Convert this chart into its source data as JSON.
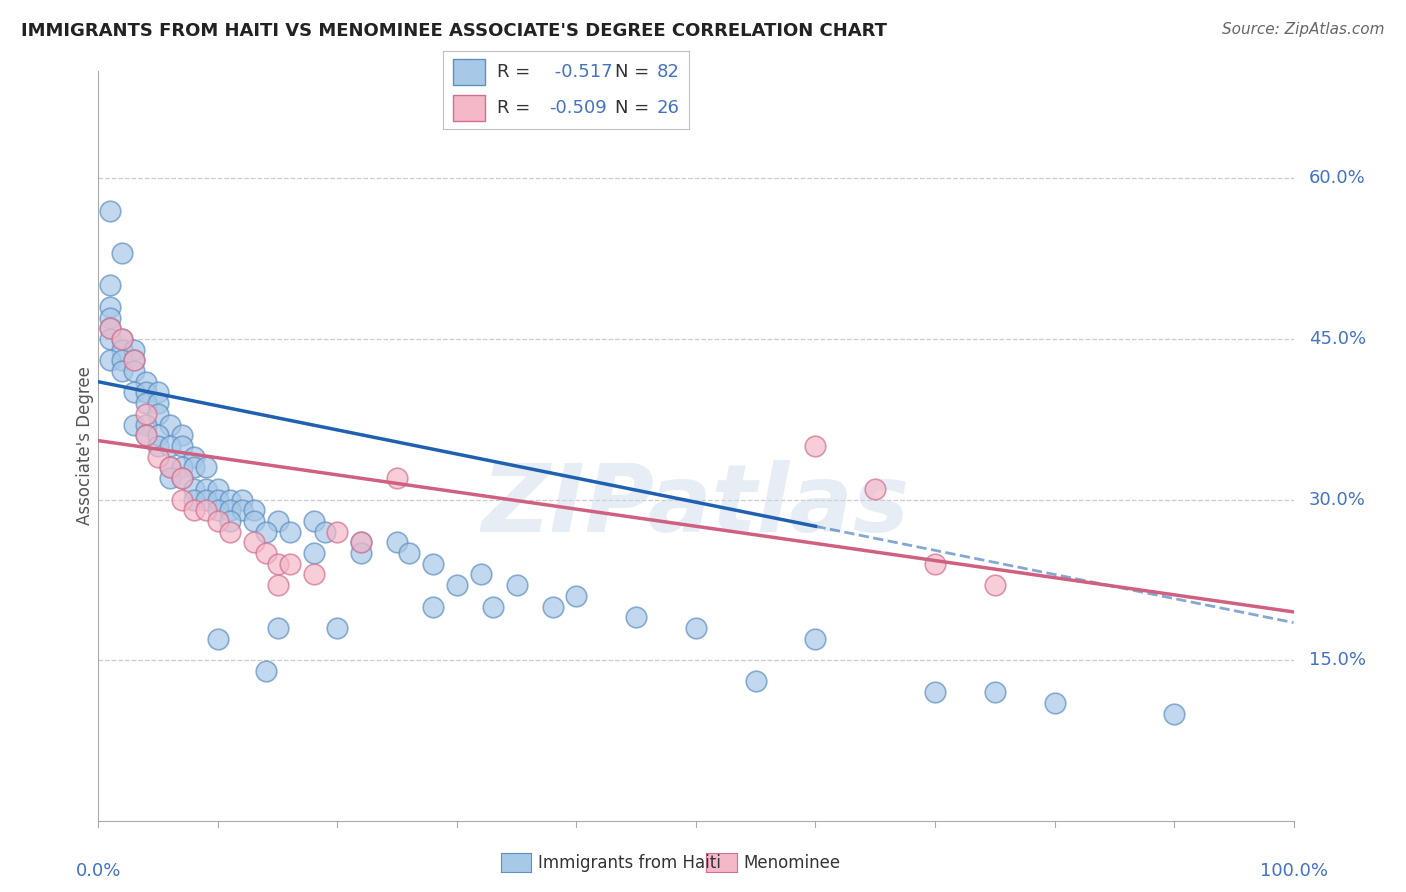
{
  "title": "IMMIGRANTS FROM HAITI VS MENOMINEE ASSOCIATE'S DEGREE CORRELATION CHART",
  "source": "Source: ZipAtlas.com",
  "ylabel": "Associate's Degree",
  "legend_r1": "R =  -0.517",
  "legend_n1": "N = 82",
  "legend_r2": "R = -0.509",
  "legend_n2": "N = 26",
  "legend_label1": "Immigrants from Haiti",
  "legend_label2": "Menominee",
  "watermark": "ZIPatlas",
  "ytick_labels": [
    "60.0%",
    "45.0%",
    "30.0%",
    "15.0%"
  ],
  "ytick_values": [
    0.6,
    0.45,
    0.3,
    0.15
  ],
  "blue_color": "#a8c8e8",
  "pink_color": "#f4b8c8",
  "blue_edge_color": "#6090c0",
  "pink_edge_color": "#d07090",
  "blue_line_color": "#2060b0",
  "pink_line_color": "#d06080",
  "axis_label_color": "#4472c4",
  "grid_color": "#cccccc",
  "blue_dots": [
    [
      0.01,
      0.57
    ],
    [
      0.02,
      0.53
    ],
    [
      0.01,
      0.5
    ],
    [
      0.01,
      0.48
    ],
    [
      0.01,
      0.47
    ],
    [
      0.01,
      0.46
    ],
    [
      0.01,
      0.45
    ],
    [
      0.02,
      0.45
    ],
    [
      0.02,
      0.44
    ],
    [
      0.03,
      0.44
    ],
    [
      0.01,
      0.43
    ],
    [
      0.02,
      0.43
    ],
    [
      0.03,
      0.43
    ],
    [
      0.02,
      0.42
    ],
    [
      0.03,
      0.42
    ],
    [
      0.04,
      0.41
    ],
    [
      0.03,
      0.4
    ],
    [
      0.04,
      0.4
    ],
    [
      0.05,
      0.4
    ],
    [
      0.04,
      0.39
    ],
    [
      0.05,
      0.39
    ],
    [
      0.05,
      0.38
    ],
    [
      0.03,
      0.37
    ],
    [
      0.04,
      0.37
    ],
    [
      0.06,
      0.37
    ],
    [
      0.04,
      0.36
    ],
    [
      0.05,
      0.36
    ],
    [
      0.07,
      0.36
    ],
    [
      0.05,
      0.35
    ],
    [
      0.06,
      0.35
    ],
    [
      0.07,
      0.35
    ],
    [
      0.08,
      0.34
    ],
    [
      0.06,
      0.33
    ],
    [
      0.07,
      0.33
    ],
    [
      0.08,
      0.33
    ],
    [
      0.09,
      0.33
    ],
    [
      0.06,
      0.32
    ],
    [
      0.07,
      0.32
    ],
    [
      0.08,
      0.31
    ],
    [
      0.09,
      0.31
    ],
    [
      0.1,
      0.31
    ],
    [
      0.08,
      0.3
    ],
    [
      0.09,
      0.3
    ],
    [
      0.1,
      0.3
    ],
    [
      0.11,
      0.3
    ],
    [
      0.12,
      0.3
    ],
    [
      0.1,
      0.29
    ],
    [
      0.11,
      0.29
    ],
    [
      0.12,
      0.29
    ],
    [
      0.13,
      0.29
    ],
    [
      0.11,
      0.28
    ],
    [
      0.13,
      0.28
    ],
    [
      0.15,
      0.28
    ],
    [
      0.18,
      0.28
    ],
    [
      0.14,
      0.27
    ],
    [
      0.16,
      0.27
    ],
    [
      0.19,
      0.27
    ],
    [
      0.22,
      0.26
    ],
    [
      0.25,
      0.26
    ],
    [
      0.18,
      0.25
    ],
    [
      0.22,
      0.25
    ],
    [
      0.26,
      0.25
    ],
    [
      0.28,
      0.24
    ],
    [
      0.32,
      0.23
    ],
    [
      0.3,
      0.22
    ],
    [
      0.35,
      0.22
    ],
    [
      0.4,
      0.21
    ],
    [
      0.28,
      0.2
    ],
    [
      0.33,
      0.2
    ],
    [
      0.38,
      0.2
    ],
    [
      0.45,
      0.19
    ],
    [
      0.15,
      0.18
    ],
    [
      0.2,
      0.18
    ],
    [
      0.5,
      0.18
    ],
    [
      0.1,
      0.17
    ],
    [
      0.6,
      0.17
    ],
    [
      0.14,
      0.14
    ],
    [
      0.55,
      0.13
    ],
    [
      0.7,
      0.12
    ],
    [
      0.75,
      0.12
    ],
    [
      0.8,
      0.11
    ],
    [
      0.9,
      0.1
    ]
  ],
  "pink_dots": [
    [
      0.01,
      0.46
    ],
    [
      0.02,
      0.45
    ],
    [
      0.03,
      0.43
    ],
    [
      0.04,
      0.38
    ],
    [
      0.04,
      0.36
    ],
    [
      0.05,
      0.34
    ],
    [
      0.06,
      0.33
    ],
    [
      0.07,
      0.32
    ],
    [
      0.07,
      0.3
    ],
    [
      0.08,
      0.29
    ],
    [
      0.09,
      0.29
    ],
    [
      0.1,
      0.28
    ],
    [
      0.11,
      0.27
    ],
    [
      0.13,
      0.26
    ],
    [
      0.14,
      0.25
    ],
    [
      0.15,
      0.24
    ],
    [
      0.2,
      0.27
    ],
    [
      0.22,
      0.26
    ],
    [
      0.16,
      0.24
    ],
    [
      0.18,
      0.23
    ],
    [
      0.15,
      0.22
    ],
    [
      0.25,
      0.32
    ],
    [
      0.6,
      0.35
    ],
    [
      0.65,
      0.31
    ],
    [
      0.7,
      0.24
    ],
    [
      0.75,
      0.22
    ]
  ],
  "blue_line_x0": 0.0,
  "blue_line_x1": 1.0,
  "blue_line_y0": 0.41,
  "blue_line_y1": 0.185,
  "blue_line_solid_x1": 0.6,
  "pink_line_x0": 0.0,
  "pink_line_x1": 1.0,
  "pink_line_y0": 0.355,
  "pink_line_y1": 0.195,
  "xlim": [
    0.0,
    1.0
  ],
  "ylim": [
    0.0,
    0.7
  ]
}
